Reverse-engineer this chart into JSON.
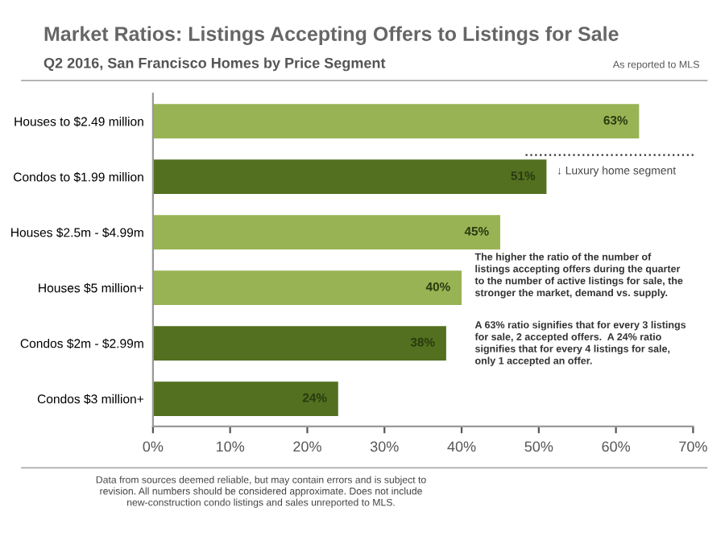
{
  "chart_data": {
    "type": "bar",
    "orientation": "horizontal",
    "title": "Market Ratios: Listings Accepting Offers to Listings for Sale",
    "subtitle": "Q2 2016, San Francisco Homes by Price Segment",
    "categories": [
      "Houses to $2.49 million",
      "Condos to $1.99 million",
      "Houses $2.5m - $4.99m",
      "Houses $5 million+",
      "Condos $2m - $2.99m",
      "Condos $3 million+"
    ],
    "values": [
      63,
      51,
      45,
      40,
      38,
      24
    ],
    "colors": [
      "#98b354",
      "#52701f",
      "#98b354",
      "#98b354",
      "#52701f",
      "#52701f"
    ],
    "value_labels": [
      "63%",
      "51%",
      "45%",
      "40%",
      "38%",
      "24%"
    ],
    "xlim": [
      0,
      70
    ],
    "xticks": [
      {
        "value": 0,
        "label": "0%"
      },
      {
        "value": 10,
        "label": "10%"
      },
      {
        "value": 20,
        "label": "20%"
      },
      {
        "value": 30,
        "label": "30%"
      },
      {
        "value": 40,
        "label": "40%"
      },
      {
        "value": 50,
        "label": "50%"
      },
      {
        "value": 60,
        "label": "60%"
      },
      {
        "value": 70,
        "label": "70%"
      }
    ],
    "grid": false,
    "legend": false,
    "annotations": [
      "As reported to MLS",
      "↓ Luxury home segment",
      "The higher the ratio of the number of\nlistings accepting offers during the quarter\nto the number of active listings for sale, the\nstronger the market, demand vs. supply.",
      "A 63% ratio signifies that for every 3 listings\nfor sale, 2 accepted offers.  A 24% ratio\nsignifies that for every 4 listings for sale,\nonly 1 accepted an offer.",
      "Data from sources deemed reliable, but may contain errors and is subject to\nrevision. All numbers should be considered approximate. Does not include\nnew-construction condo listings and sales unreported to MLS."
    ]
  }
}
